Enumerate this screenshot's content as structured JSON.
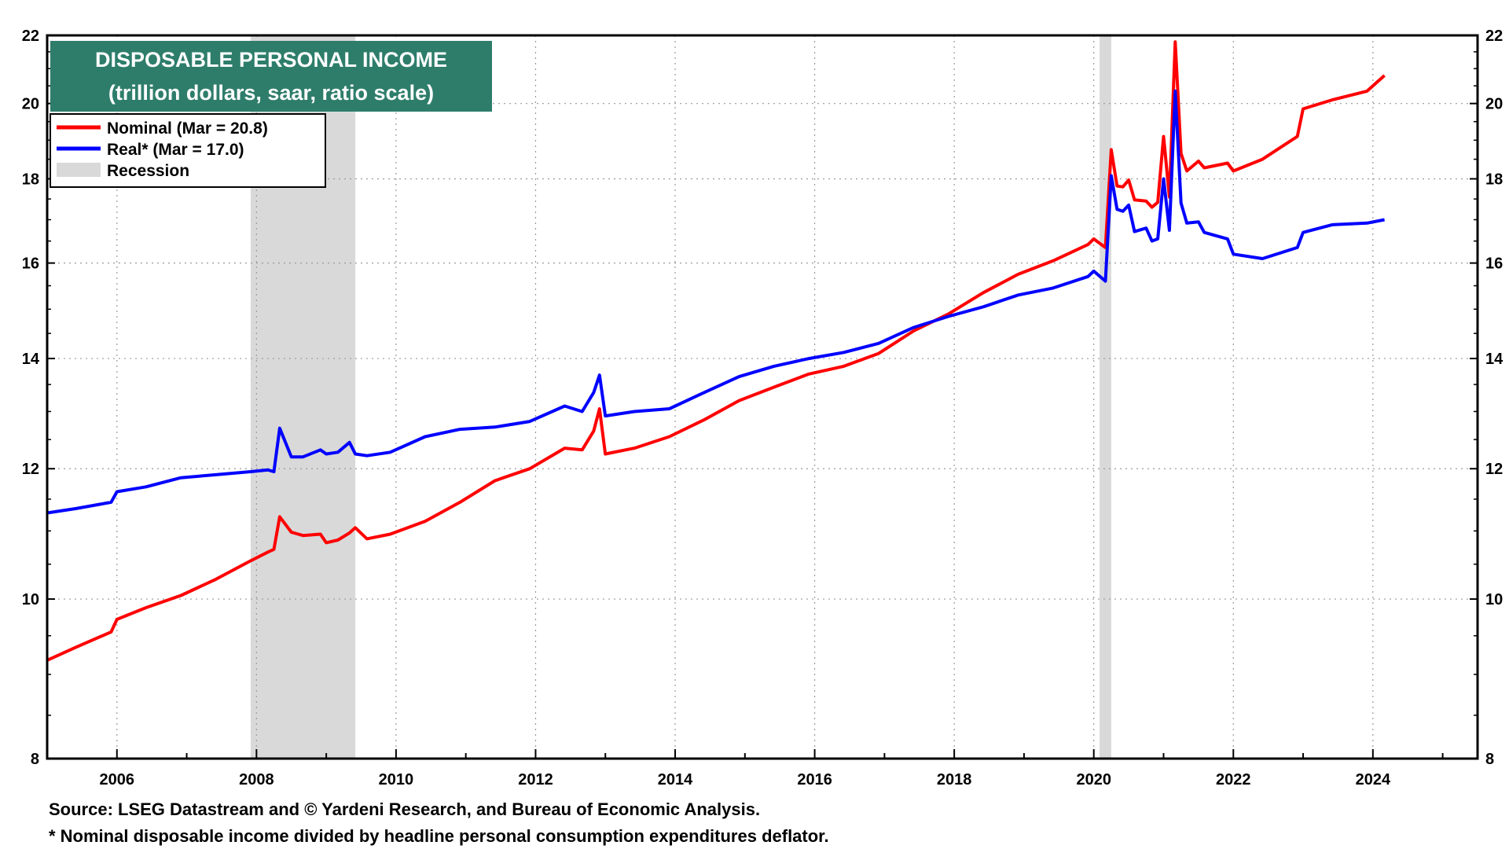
{
  "chart_data": {
    "type": "line",
    "title": "DISPOSABLE PERSONAL INCOME",
    "subtitle": "(trillion dollars, saar, ratio scale)",
    "y_scale": "log",
    "ylim": [
      8,
      22
    ],
    "y_ticks": [
      8,
      10,
      12,
      14,
      16,
      18,
      20,
      22
    ],
    "xlim": [
      "2005-01",
      "2025-07"
    ],
    "x_ticks": [
      "2006",
      "2008",
      "2010",
      "2012",
      "2014",
      "2016",
      "2018",
      "2020",
      "2022",
      "2024"
    ],
    "grid": true,
    "legend_position": "top-left",
    "legend": [
      {
        "label": "Nominal (Mar = 20.8)",
        "color": "#ff0000"
      },
      {
        "label": "Real* (Mar = 17.0)",
        "color": "#0000ff"
      },
      {
        "label": "Recession",
        "color": "#d9d9d9"
      }
    ],
    "recessions": [
      {
        "start": "2007-12",
        "end": "2009-06"
      },
      {
        "start": "2020-02",
        "end": "2020-04"
      }
    ],
    "series": [
      {
        "name": "Nominal (Mar = 20.8)",
        "color": "#ff0000",
        "points": [
          [
            "2005-01",
            9.18
          ],
          [
            "2005-06",
            9.35
          ],
          [
            "2005-12",
            9.55
          ],
          [
            "2006-01",
            9.72
          ],
          [
            "2006-06",
            9.88
          ],
          [
            "2006-12",
            10.05
          ],
          [
            "2007-06",
            10.28
          ],
          [
            "2007-12",
            10.55
          ],
          [
            "2008-03",
            10.68
          ],
          [
            "2008-04",
            10.72
          ],
          [
            "2008-05",
            11.22
          ],
          [
            "2008-07",
            10.98
          ],
          [
            "2008-09",
            10.93
          ],
          [
            "2008-12",
            10.95
          ],
          [
            "2009-01",
            10.82
          ],
          [
            "2009-03",
            10.86
          ],
          [
            "2009-05",
            10.97
          ],
          [
            "2009-06",
            11.05
          ],
          [
            "2009-08",
            10.88
          ],
          [
            "2009-12",
            10.95
          ],
          [
            "2010-06",
            11.15
          ],
          [
            "2010-12",
            11.45
          ],
          [
            "2011-06",
            11.8
          ],
          [
            "2011-12",
            12.0
          ],
          [
            "2012-06",
            12.35
          ],
          [
            "2012-09",
            12.32
          ],
          [
            "2012-11",
            12.65
          ],
          [
            "2012-12",
            13.05
          ],
          [
            "2013-01",
            12.25
          ],
          [
            "2013-06",
            12.35
          ],
          [
            "2013-12",
            12.55
          ],
          [
            "2014-06",
            12.85
          ],
          [
            "2014-12",
            13.2
          ],
          [
            "2015-06",
            13.45
          ],
          [
            "2015-12",
            13.7
          ],
          [
            "2016-06",
            13.85
          ],
          [
            "2016-12",
            14.1
          ],
          [
            "2017-06",
            14.55
          ],
          [
            "2017-12",
            14.9
          ],
          [
            "2018-06",
            15.35
          ],
          [
            "2018-12",
            15.75
          ],
          [
            "2019-06",
            16.05
          ],
          [
            "2019-12",
            16.42
          ],
          [
            "2020-01",
            16.55
          ],
          [
            "2020-03",
            16.35
          ],
          [
            "2020-04",
            18.75
          ],
          [
            "2020-05",
            17.82
          ],
          [
            "2020-06",
            17.8
          ],
          [
            "2020-07",
            17.97
          ],
          [
            "2020-08",
            17.48
          ],
          [
            "2020-10",
            17.45
          ],
          [
            "2020-11",
            17.3
          ],
          [
            "2020-12",
            17.42
          ],
          [
            "2021-01",
            19.1
          ],
          [
            "2021-02",
            17.55
          ],
          [
            "2021-03",
            21.8
          ],
          [
            "2021-04",
            18.65
          ],
          [
            "2021-05",
            18.2
          ],
          [
            "2021-07",
            18.45
          ],
          [
            "2021-08",
            18.28
          ],
          [
            "2021-12",
            18.4
          ],
          [
            "2022-01",
            18.2
          ],
          [
            "2022-06",
            18.5
          ],
          [
            "2022-12",
            19.1
          ],
          [
            "2023-01",
            19.85
          ],
          [
            "2023-06",
            20.1
          ],
          [
            "2023-12",
            20.35
          ],
          [
            "2024-03",
            20.8
          ]
        ]
      },
      {
        "name": "Real* (Mar = 17.0)",
        "color": "#0000ff",
        "points": [
          [
            "2005-01",
            11.28
          ],
          [
            "2005-06",
            11.35
          ],
          [
            "2005-12",
            11.45
          ],
          [
            "2006-01",
            11.62
          ],
          [
            "2006-06",
            11.7
          ],
          [
            "2006-12",
            11.85
          ],
          [
            "2007-06",
            11.9
          ],
          [
            "2007-12",
            11.95
          ],
          [
            "2008-03",
            11.98
          ],
          [
            "2008-04",
            11.95
          ],
          [
            "2008-05",
            12.7
          ],
          [
            "2008-07",
            12.2
          ],
          [
            "2008-09",
            12.2
          ],
          [
            "2008-12",
            12.32
          ],
          [
            "2009-01",
            12.25
          ],
          [
            "2009-03",
            12.28
          ],
          [
            "2009-05",
            12.45
          ],
          [
            "2009-06",
            12.25
          ],
          [
            "2009-08",
            12.22
          ],
          [
            "2009-12",
            12.28
          ],
          [
            "2010-06",
            12.55
          ],
          [
            "2010-12",
            12.68
          ],
          [
            "2011-06",
            12.72
          ],
          [
            "2011-12",
            12.82
          ],
          [
            "2012-06",
            13.1
          ],
          [
            "2012-09",
            13.0
          ],
          [
            "2012-11",
            13.35
          ],
          [
            "2012-12",
            13.68
          ],
          [
            "2013-01",
            12.92
          ],
          [
            "2013-06",
            13.0
          ],
          [
            "2013-12",
            13.05
          ],
          [
            "2014-06",
            13.35
          ],
          [
            "2014-12",
            13.65
          ],
          [
            "2015-06",
            13.85
          ],
          [
            "2015-12",
            14.0
          ],
          [
            "2016-06",
            14.12
          ],
          [
            "2016-12",
            14.3
          ],
          [
            "2017-06",
            14.62
          ],
          [
            "2017-12",
            14.85
          ],
          [
            "2018-06",
            15.05
          ],
          [
            "2018-12",
            15.3
          ],
          [
            "2019-06",
            15.45
          ],
          [
            "2019-12",
            15.7
          ],
          [
            "2020-01",
            15.82
          ],
          [
            "2020-03",
            15.6
          ],
          [
            "2020-04",
            18.08
          ],
          [
            "2020-05",
            17.25
          ],
          [
            "2020-06",
            17.2
          ],
          [
            "2020-07",
            17.35
          ],
          [
            "2020-08",
            16.72
          ],
          [
            "2020-10",
            16.8
          ],
          [
            "2020-11",
            16.5
          ],
          [
            "2020-12",
            16.55
          ],
          [
            "2021-01",
            18.0
          ],
          [
            "2021-02",
            16.75
          ],
          [
            "2021-03",
            20.35
          ],
          [
            "2021-04",
            17.4
          ],
          [
            "2021-05",
            16.92
          ],
          [
            "2021-07",
            16.95
          ],
          [
            "2021-08",
            16.7
          ],
          [
            "2021-12",
            16.55
          ],
          [
            "2022-01",
            16.2
          ],
          [
            "2022-06",
            16.1
          ],
          [
            "2022-12",
            16.35
          ],
          [
            "2023-01",
            16.7
          ],
          [
            "2023-06",
            16.88
          ],
          [
            "2023-12",
            16.92
          ],
          [
            "2024-03",
            17.0
          ]
        ]
      }
    ]
  },
  "notes": {
    "source": "Source: LSEG Datastream and © Yardeni Research, and Bureau of Economic Analysis.",
    "footnote": "* Nominal disposable income divided by headline personal consumption expenditures deflator."
  }
}
